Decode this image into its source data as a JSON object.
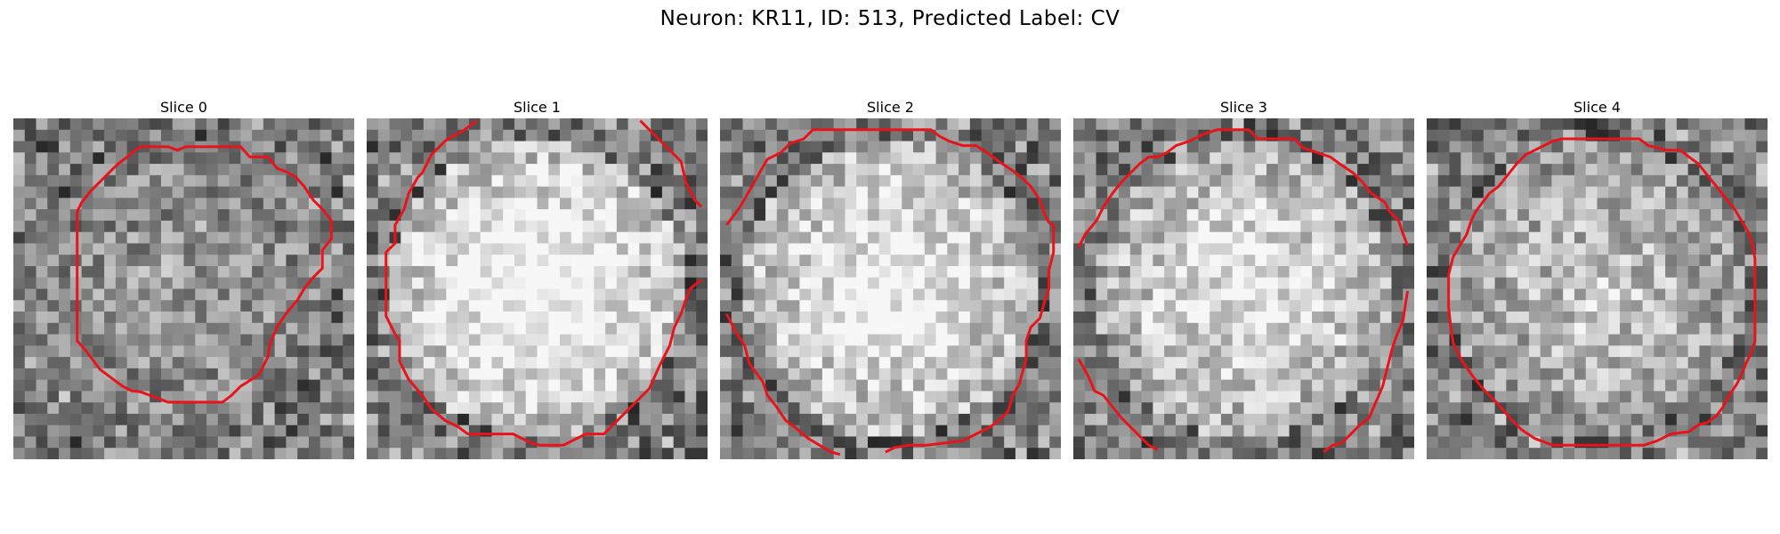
{
  "figure": {
    "title": "Neuron: KR11, ID: 513, Predicted Label: CV",
    "contour_color": "#e8141b",
    "colormap": "gray",
    "panels": [
      {
        "title": "Slice 0",
        "seed": 11,
        "bright": 0.2,
        "contour": [
          [
            123,
            131
          ],
          [
            148,
            131
          ],
          [
            156,
            134
          ],
          [
            164,
            131
          ],
          [
            172,
            131
          ],
          [
            180,
            131
          ],
          [
            188,
            131
          ],
          [
            196,
            131
          ],
          [
            204,
            131
          ],
          [
            212,
            131
          ],
          [
            220,
            140
          ],
          [
            228,
            140
          ],
          [
            236,
            140
          ],
          [
            244,
            150
          ],
          [
            252,
            153
          ],
          [
            260,
            157
          ],
          [
            268,
            166
          ],
          [
            276,
            178
          ],
          [
            284,
            186
          ],
          [
            292,
            196
          ],
          [
            292,
            212
          ],
          [
            284,
            222
          ],
          [
            284,
            238
          ],
          [
            276,
            246
          ],
          [
            268,
            256
          ],
          [
            262,
            266
          ],
          [
            252,
            278
          ],
          [
            244,
            290
          ],
          [
            238,
            304
          ],
          [
            236,
            316
          ],
          [
            228,
            332
          ],
          [
            212,
            342
          ],
          [
            204,
            350
          ],
          [
            196,
            356
          ],
          [
            180,
            356
          ],
          [
            164,
            356
          ],
          [
            148,
            356
          ],
          [
            132,
            350
          ],
          [
            124,
            347
          ],
          [
            116,
            346
          ],
          [
            108,
            342
          ],
          [
            100,
            336
          ],
          [
            88,
            327
          ],
          [
            76,
            311
          ],
          [
            68,
            302
          ],
          [
            68,
            280
          ],
          [
            68,
            260
          ],
          [
            68,
            240
          ],
          [
            68,
            212
          ],
          [
            68,
            188
          ],
          [
            72,
            180
          ],
          [
            80,
            170
          ],
          [
            92,
            158
          ],
          [
            104,
            146
          ],
          [
            112,
            140
          ],
          [
            123,
            131
          ]
        ]
      },
      {
        "seed": 29,
        "title": "Slice 1",
        "bright": 0.7,
        "segments": [
          [
            [
              420,
              108
            ],
            [
              408,
              117
            ],
            [
              400,
              121
            ],
            [
              392,
              126
            ],
            [
              380,
              138
            ],
            [
              372,
              154
            ],
            [
              368,
              158
            ],
            [
              360,
              172
            ],
            [
              356,
              186
            ],
            [
              348,
              200
            ],
            [
              348,
              216
            ],
            [
              340,
              224
            ],
            [
              340,
              244
            ],
            [
              340,
              264
            ],
            [
              340,
              280
            ],
            [
              348,
              296
            ],
            [
              352,
              302
            ],
            [
              352,
              320
            ],
            [
              360,
              336
            ],
            [
              372,
              350
            ],
            [
              380,
              362
            ],
            [
              392,
              372
            ],
            [
              404,
              378
            ],
            [
              412,
              384
            ],
            [
              452,
              384
            ],
            [
              468,
              392
            ],
            [
              476,
              394
            ],
            [
              496,
              394
            ],
            [
              516,
              384
            ],
            [
              532,
              384
            ],
            [
              548,
              368
            ],
            [
              564,
              352
            ],
            [
              572,
              344
            ],
            [
              580,
              326
            ],
            [
              590,
              306
            ],
            [
              594,
              290
            ],
            [
              600,
              278
            ],
            [
              604,
              266
            ],
            [
              608,
              256
            ],
            [
              618,
              248
            ]
          ],
          [
            [
              564,
              108
            ],
            [
              576,
              120
            ],
            [
              588,
              132
            ],
            [
              600,
              144
            ],
            [
              604,
              162
            ],
            [
              612,
              178
            ],
            [
              618,
              184
            ]
          ]
        ]
      },
      {
        "seed": 47,
        "title": "Slice 2",
        "bright": 0.62,
        "segments": [
          [
            [
              640,
              200
            ],
            [
              652,
              184
            ],
            [
              660,
              170
            ],
            [
              668,
              156
            ],
            [
              676,
              142
            ],
            [
              688,
              136
            ],
            [
              696,
              128
            ],
            [
              708,
              124
            ],
            [
              716,
              116
            ],
            [
              740,
              116
            ],
            [
              764,
              116
            ],
            [
              788,
              116
            ],
            [
              812,
              116
            ],
            [
              820,
              116
            ],
            [
              828,
              122
            ],
            [
              836,
              126
            ],
            [
              848,
              130
            ],
            [
              860,
              130
            ],
            [
              872,
              138
            ],
            [
              880,
              144
            ],
            [
              892,
              152
            ],
            [
              900,
              158
            ],
            [
              908,
              166
            ],
            [
              916,
              178
            ],
            [
              920,
              190
            ],
            [
              924,
              198
            ]
          ],
          [
            [
              640,
              278
            ],
            [
              648,
              294
            ],
            [
              656,
              306
            ],
            [
              660,
              322
            ],
            [
              672,
              338
            ],
            [
              676,
              350
            ],
            [
              684,
              360
            ],
            [
              692,
              372
            ],
            [
              700,
              378
            ],
            [
              712,
              388
            ],
            [
              732,
              400
            ],
            [
              740,
              402
            ]
          ],
          [
            [
              780,
              400
            ],
            [
              788,
              396
            ],
            [
              800,
              394
            ],
            [
              816,
              394
            ],
            [
              832,
              392
            ],
            [
              848,
              390
            ],
            [
              860,
              384
            ],
            [
              872,
              378
            ],
            [
              880,
              372
            ],
            [
              888,
              364
            ],
            [
              892,
              350
            ],
            [
              898,
              340
            ],
            [
              900,
              332
            ],
            [
              904,
              318
            ],
            [
              904,
              302
            ],
            [
              908,
              290
            ],
            [
              916,
              282
            ],
            [
              920,
              268
            ],
            [
              924,
              256
            ],
            [
              924,
              240
            ],
            [
              928,
              224
            ],
            [
              928,
              200
            ],
            [
              924,
              198
            ]
          ]
        ]
      },
      {
        "seed": 71,
        "title": "Slice 3",
        "bright": 0.55,
        "segments": [
          [
            [
              950,
              220
            ],
            [
              956,
              208
            ],
            [
              966,
              196
            ],
            [
              972,
              184
            ],
            [
              980,
              172
            ],
            [
              988,
              162
            ],
            [
              996,
              154
            ],
            [
              1004,
              146
            ],
            [
              1012,
              140
            ],
            [
              1020,
              140
            ],
            [
              1028,
              136
            ],
            [
              1036,
              130
            ],
            [
              1048,
              126
            ],
            [
              1060,
              120
            ],
            [
              1072,
              116
            ],
            [
              1080,
              116
            ],
            [
              1088,
              116
            ],
            [
              1100,
              116
            ],
            [
              1108,
              124
            ],
            [
              1120,
              124
            ],
            [
              1132,
              124
            ],
            [
              1140,
              124
            ],
            [
              1148,
              132
            ],
            [
              1160,
              136
            ],
            [
              1172,
              140
            ],
            [
              1180,
              146
            ],
            [
              1192,
              154
            ],
            [
              1200,
              162
            ],
            [
              1208,
              172
            ],
            [
              1220,
              180
            ],
            [
              1224,
              188
            ],
            [
              1232,
              196
            ],
            [
              1236,
              208
            ],
            [
              1240,
              218
            ]
          ],
          [
            [
              950,
              318
            ],
            [
              956,
              328
            ],
            [
              960,
              336
            ],
            [
              964,
              346
            ],
            [
              972,
              350
            ],
            [
              980,
              360
            ],
            [
              988,
              370
            ],
            [
              996,
              378
            ],
            [
              1004,
              386
            ],
            [
              1012,
              394
            ],
            [
              1020,
              398
            ]
          ],
          [
            [
              1166,
              400
            ],
            [
              1174,
              394
            ],
            [
              1182,
              392
            ],
            [
              1190,
              384
            ],
            [
              1198,
              376
            ],
            [
              1206,
              370
            ],
            [
              1212,
              356
            ],
            [
              1218,
              342
            ],
            [
              1222,
              326
            ],
            [
              1226,
              310
            ],
            [
              1230,
              298
            ],
            [
              1236,
              284
            ],
            [
              1238,
              270
            ],
            [
              1240,
              258
            ]
          ]
        ]
      },
      {
        "seed": 97,
        "title": "Slice 4",
        "bright": 0.38,
        "contour": [
          [
            1280,
            228
          ],
          [
            1286,
            218
          ],
          [
            1292,
            208
          ],
          [
            1296,
            196
          ],
          [
            1300,
            188
          ],
          [
            1306,
            180
          ],
          [
            1312,
            172
          ],
          [
            1320,
            166
          ],
          [
            1328,
            156
          ],
          [
            1336,
            146
          ],
          [
            1344,
            138
          ],
          [
            1352,
            134
          ],
          [
            1360,
            130
          ],
          [
            1368,
            126
          ],
          [
            1376,
            124
          ],
          [
            1388,
            124
          ],
          [
            1400,
            124
          ],
          [
            1416,
            124
          ],
          [
            1432,
            124
          ],
          [
            1444,
            124
          ],
          [
            1452,
            130
          ],
          [
            1460,
            132
          ],
          [
            1468,
            134
          ],
          [
            1480,
            134
          ],
          [
            1488,
            140
          ],
          [
            1496,
            146
          ],
          [
            1504,
            156
          ],
          [
            1512,
            166
          ],
          [
            1520,
            176
          ],
          [
            1528,
            186
          ],
          [
            1534,
            196
          ],
          [
            1540,
            206
          ],
          [
            1544,
            218
          ],
          [
            1546,
            230
          ],
          [
            1546,
            244
          ],
          [
            1546,
            260
          ],
          [
            1546,
            274
          ],
          [
            1546,
            288
          ],
          [
            1546,
            302
          ],
          [
            1542,
            314
          ],
          [
            1538,
            322
          ],
          [
            1534,
            332
          ],
          [
            1530,
            340
          ],
          [
            1522,
            352
          ],
          [
            1518,
            360
          ],
          [
            1512,
            368
          ],
          [
            1504,
            374
          ],
          [
            1496,
            376
          ],
          [
            1488,
            382
          ],
          [
            1472,
            384
          ],
          [
            1460,
            390
          ],
          [
            1448,
            394
          ],
          [
            1432,
            394
          ],
          [
            1416,
            394
          ],
          [
            1400,
            394
          ],
          [
            1384,
            394
          ],
          [
            1368,
            394
          ],
          [
            1352,
            388
          ],
          [
            1340,
            380
          ],
          [
            1330,
            370
          ],
          [
            1320,
            358
          ],
          [
            1308,
            346
          ],
          [
            1298,
            334
          ],
          [
            1288,
            320
          ],
          [
            1280,
            304
          ],
          [
            1278,
            290
          ],
          [
            1276,
            272
          ],
          [
            1276,
            258
          ],
          [
            1276,
            244
          ],
          [
            1280,
            228
          ]
        ]
      }
    ]
  }
}
